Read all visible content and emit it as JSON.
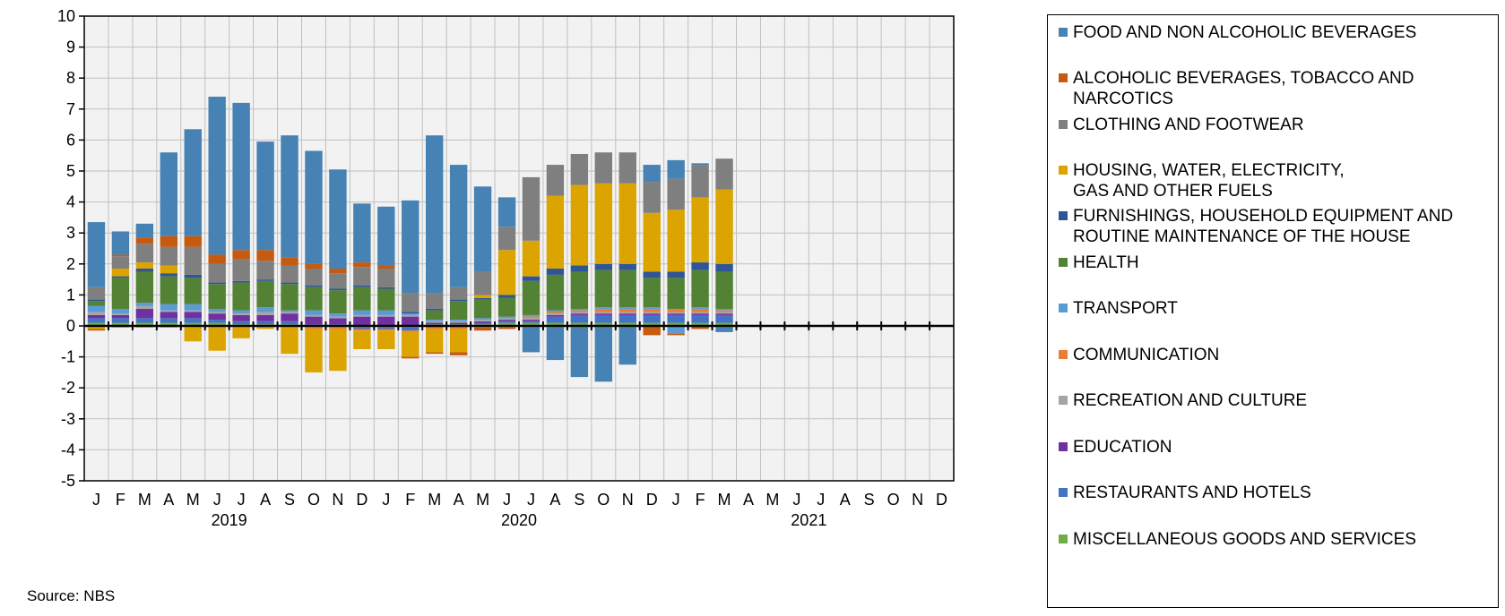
{
  "source": "Source:  NBS",
  "colors": {
    "plot_background": "#f2f2f2",
    "grid": "#bfbfbf"
  },
  "chart_data": {
    "type": "bar",
    "stacked": true,
    "categories": [
      "J",
      "F",
      "M",
      "A",
      "M",
      "J",
      "J",
      "A",
      "S",
      "O",
      "N",
      "D",
      "J",
      "F",
      "M",
      "A",
      "M",
      "J",
      "J",
      "A",
      "S",
      "O",
      "N",
      "D",
      "J",
      "F",
      "M",
      "A",
      "M",
      "J",
      "J",
      "A",
      "S",
      "O",
      "N",
      "D"
    ],
    "years": [
      {
        "label": "2019",
        "start_index": 0,
        "end_index": 11
      },
      {
        "label": "2020",
        "start_index": 12,
        "end_index": 23
      },
      {
        "label": "2021",
        "start_index": 24,
        "end_index": 35
      }
    ],
    "ylim": [
      -5,
      10
    ],
    "yticks": [
      -5,
      -4,
      -3,
      -2,
      -1,
      0,
      1,
      2,
      3,
      4,
      5,
      6,
      7,
      8,
      9,
      10
    ],
    "grid": true,
    "legend_position": "right",
    "series": [
      {
        "name": "MISCELLANEOUS  GOODS AND SERVICES",
        "color": "#70ad47",
        "values": [
          0.1,
          0.1,
          0.1,
          0.1,
          0.1,
          0.1,
          0.05,
          0.05,
          0.05,
          -0.05,
          -0.05,
          -0.05,
          -0.05,
          -0.05,
          0.05,
          0.05,
          0.05,
          0.1,
          0.1,
          0.1,
          0.1,
          0.1,
          0.1,
          0.1,
          0.1,
          0.1,
          0.1,
          null,
          null,
          null,
          null,
          null,
          null,
          null,
          null,
          null
        ]
      },
      {
        "name": "RESTAURANTS AND HOTELS",
        "color": "#4472c4",
        "values": [
          0.15,
          0.15,
          0.15,
          0.15,
          0.15,
          0.1,
          0.1,
          0.1,
          0.1,
          0.05,
          0.05,
          -0.05,
          -0.05,
          -0.1,
          -0.05,
          -0.05,
          0.05,
          0.05,
          0.05,
          0.2,
          0.25,
          0.25,
          0.25,
          0.25,
          0.25,
          0.25,
          0.25,
          null,
          null,
          null,
          null,
          null,
          null,
          null,
          null,
          null
        ]
      },
      {
        "name": "EDUCATION",
        "color": "#7030a0",
        "values": [
          0.1,
          0.1,
          0.3,
          0.2,
          0.2,
          0.2,
          0.2,
          0.2,
          0.25,
          0.25,
          0.2,
          0.3,
          0.3,
          0.3,
          0.05,
          0.05,
          0.05,
          0.05,
          0.05,
          0.05,
          0.05,
          0.05,
          0.05,
          0.05,
          0.05,
          0.05,
          0.05,
          null,
          null,
          null,
          null,
          null,
          null,
          null,
          null,
          null
        ]
      },
      {
        "name": "RECREATION AND CULTURE",
        "color": "#a5a5a5",
        "values": [
          0.1,
          0.05,
          0.1,
          0.05,
          0.05,
          0.05,
          0.05,
          0.1,
          0.05,
          0.05,
          0.05,
          0.05,
          0.05,
          0.05,
          0.05,
          0.05,
          0.05,
          0.05,
          0.05,
          0.05,
          0.05,
          0.05,
          0.05,
          0.05,
          0.05,
          0.05,
          0.05,
          null,
          null,
          null,
          null,
          null,
          null,
          null,
          null,
          null
        ]
      },
      {
        "name": "COMMUNICATION",
        "color": "#ed7d31",
        "values": [
          -0.05,
          -0.05,
          -0.05,
          -0.05,
          -0.05,
          -0.05,
          -0.05,
          -0.05,
          -0.05,
          -0.05,
          -0.05,
          -0.05,
          -0.05,
          -0.05,
          -0.05,
          -0.05,
          -0.05,
          -0.05,
          0.05,
          0.05,
          0.05,
          0.1,
          0.1,
          0.1,
          0.1,
          0.1,
          0.05,
          null,
          null,
          null,
          null,
          null,
          null,
          null,
          null,
          null
        ]
      },
      {
        "name": "TRANSPORT",
        "color": "#5b9bd5",
        "values": [
          0.2,
          0.15,
          0.1,
          0.2,
          0.2,
          0.1,
          0.1,
          0.15,
          0.05,
          0.15,
          0.1,
          0.15,
          0.15,
          0.05,
          0.05,
          0.05,
          0.05,
          0.05,
          0.05,
          0.05,
          0.05,
          0.05,
          0.05,
          0.05,
          -0.25,
          0.05,
          0.05,
          null,
          null,
          null,
          null,
          null,
          null,
          null,
          null,
          null
        ]
      },
      {
        "name": "HEALTH",
        "color": "#548235",
        "values": [
          0.15,
          1.0,
          1.0,
          0.9,
          0.85,
          0.8,
          0.9,
          0.85,
          0.85,
          0.75,
          0.75,
          0.75,
          0.7,
          0.0,
          0.3,
          0.6,
          0.6,
          0.6,
          1.1,
          1.15,
          1.2,
          1.2,
          1.2,
          0.95,
          1.0,
          1.2,
          1.2,
          null,
          null,
          null,
          null,
          null,
          null,
          null,
          null,
          null
        ]
      },
      {
        "name": "FURNISHINGS, HOUSEHOLD EQUIPMENT AND ROUTINE MAINTENANCE OF THE HOUSE",
        "color": "#2f5597",
        "values": [
          0.05,
          0.05,
          0.1,
          0.1,
          0.1,
          0.05,
          0.05,
          0.05,
          0.05,
          0.05,
          0.05,
          0.05,
          0.05,
          0.05,
          0.05,
          0.05,
          0.05,
          0.1,
          0.15,
          0.2,
          0.2,
          0.2,
          0.2,
          0.2,
          0.2,
          0.25,
          0.25,
          null,
          null,
          null,
          null,
          null,
          null,
          null,
          null,
          null
        ]
      },
      {
        "name": "HOUSING, WATER, ELECTRICITY,\nGAS AND OTHER FUELS",
        "color": "#dba400",
        "values": [
          -0.05,
          0.25,
          0.2,
          0.25,
          -0.45,
          -0.75,
          -0.35,
          -0.05,
          -0.85,
          -1.4,
          -1.35,
          -0.6,
          -0.6,
          -0.8,
          -0.75,
          -0.75,
          0.1,
          1.45,
          1.15,
          2.35,
          2.6,
          2.6,
          2.6,
          1.9,
          2.0,
          2.1,
          2.4,
          null,
          null,
          null,
          null,
          null,
          null,
          null,
          null,
          null
        ]
      },
      {
        "name": "CLOTHING AND FOOTWEAR",
        "color": "#7f7f7f",
        "values": [
          0.4,
          0.4,
          0.6,
          0.6,
          0.9,
          0.6,
          0.7,
          0.6,
          0.55,
          0.55,
          0.5,
          0.6,
          0.6,
          0.6,
          0.5,
          0.4,
          0.75,
          0.75,
          2.05,
          1.0,
          1.0,
          1.0,
          1.0,
          1.0,
          1.0,
          1.05,
          1.0,
          null,
          null,
          null,
          null,
          null,
          null,
          null,
          null,
          null
        ]
      },
      {
        "name": "ALCOHOLIC BEVERAGES,  TOBACCO AND\nNARCOTICS",
        "color": "#c55a11",
        "values": [
          -0.05,
          0.05,
          0.2,
          0.35,
          0.35,
          0.3,
          0.3,
          0.35,
          0.25,
          0.15,
          0.15,
          0.15,
          0.1,
          -0.05,
          -0.05,
          -0.1,
          -0.1,
          -0.05,
          -0.05,
          -0.05,
          -0.05,
          -0.05,
          -0.05,
          -0.3,
          -0.05,
          -0.1,
          -0.05,
          null,
          null,
          null,
          null,
          null,
          null,
          null,
          null,
          null
        ]
      },
      {
        "name": "FOOD AND NON ALCOHOLIC  BEVERAGES",
        "color": "#4682b4",
        "values": [
          2.1,
          0.75,
          0.45,
          2.7,
          3.45,
          5.1,
          4.75,
          3.5,
          3.95,
          3.65,
          3.2,
          1.9,
          1.9,
          3.0,
          5.1,
          3.95,
          2.75,
          0.95,
          -0.8,
          -1.05,
          -1.6,
          -1.75,
          -1.2,
          0.55,
          0.6,
          0.05,
          -0.15,
          null,
          null,
          null,
          null,
          null,
          null,
          null,
          null,
          null
        ]
      }
    ]
  }
}
